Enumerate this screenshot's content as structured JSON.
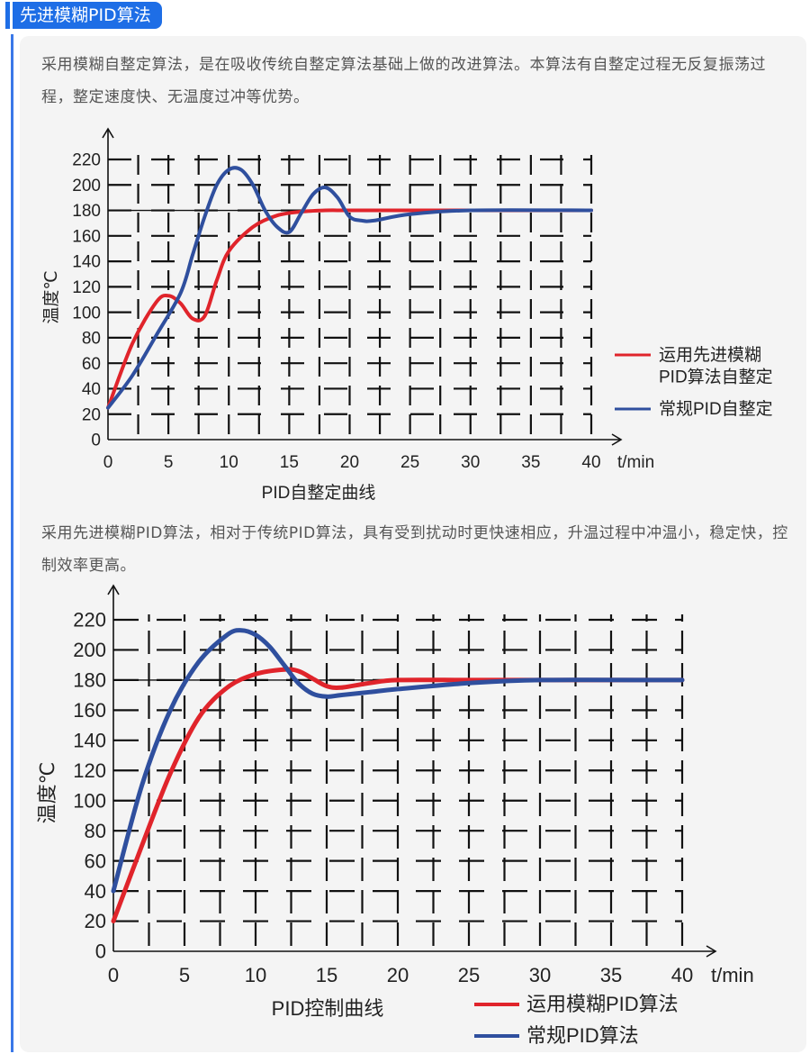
{
  "header": {
    "title": "先进模糊PID算法"
  },
  "paragraphs": [
    "采用模糊自整定算法，是在吸收传统自整定算法基础上做的改进算法。本算法有自整定过程无反复振荡过程，整定速度快、无温度过冲等优势。",
    "采用先进模糊PID算法，相对于传统PID算法，具有受到扰动时更快速相应，升温过程中冲温小，稳定快，控制效率更高。"
  ],
  "colors": {
    "accent": "#1e6ee6",
    "red": "#e0242b",
    "blue": "#2f4f9e"
  },
  "chart_data": [
    {
      "type": "line",
      "title": "PID自整定曲线",
      "ylabel": "温度℃",
      "xlabel": "t/min",
      "xlim": [
        0,
        40
      ],
      "ylim": [
        0,
        220
      ],
      "xticks": [
        0,
        5,
        10,
        15,
        20,
        25,
        30,
        35,
        40
      ],
      "yticks": [
        0,
        20,
        40,
        60,
        80,
        100,
        120,
        140,
        160,
        180,
        200,
        220
      ],
      "reference_line": 180,
      "legend_position": "right",
      "series": [
        {
          "name": "运用先进模糊PID算法自整定",
          "color": "#e0242b",
          "x": [
            0,
            2,
            4,
            5,
            6,
            7,
            8,
            9,
            10,
            12,
            14,
            16,
            18,
            20,
            25,
            30,
            40
          ],
          "y": [
            25,
            75,
            108,
            113,
            107,
            95,
            97,
            125,
            148,
            167,
            176,
            179,
            180,
            180,
            180,
            180,
            180
          ]
        },
        {
          "name": "常规PID自整定",
          "color": "#2f4f9e",
          "x": [
            0,
            2,
            4,
            6,
            7,
            8,
            9,
            10,
            11,
            12,
            13,
            14,
            15,
            16,
            17,
            18,
            19,
            20,
            21,
            22,
            25,
            30,
            40
          ],
          "y": [
            25,
            50,
            82,
            115,
            145,
            175,
            200,
            212,
            212,
            200,
            180,
            167,
            163,
            178,
            193,
            198,
            190,
            175,
            172,
            172,
            177,
            180,
            180
          ]
        }
      ]
    },
    {
      "type": "line",
      "title": "PID控制曲线",
      "ylabel": "温度℃",
      "xlabel": "t/min",
      "xlim": [
        0,
        40
      ],
      "ylim": [
        0,
        220
      ],
      "xticks": [
        0,
        5,
        10,
        15,
        20,
        25,
        30,
        35,
        40
      ],
      "yticks": [
        0,
        20,
        40,
        60,
        80,
        100,
        120,
        140,
        160,
        180,
        200,
        220
      ],
      "reference_line": 180,
      "legend_position": "bottom-right",
      "series": [
        {
          "name": "运用模糊PID算法",
          "color": "#e0242b",
          "x": [
            0,
            2,
            4,
            6,
            8,
            10,
            12,
            13,
            14,
            15,
            16,
            18,
            20,
            25,
            30,
            40
          ],
          "y": [
            20,
            70,
            118,
            155,
            175,
            184,
            187,
            186,
            181,
            176,
            175,
            178,
            180,
            180,
            180,
            180
          ]
        },
        {
          "name": "常规PID算法",
          "color": "#2f4f9e",
          "x": [
            0,
            2,
            4,
            6,
            8,
            9,
            10,
            11,
            12,
            13,
            14,
            15,
            16,
            18,
            20,
            25,
            30,
            40
          ],
          "y": [
            40,
            110,
            160,
            192,
            210,
            213,
            210,
            202,
            190,
            178,
            171,
            169,
            170,
            172,
            174,
            178,
            180,
            180
          ]
        }
      ]
    }
  ]
}
